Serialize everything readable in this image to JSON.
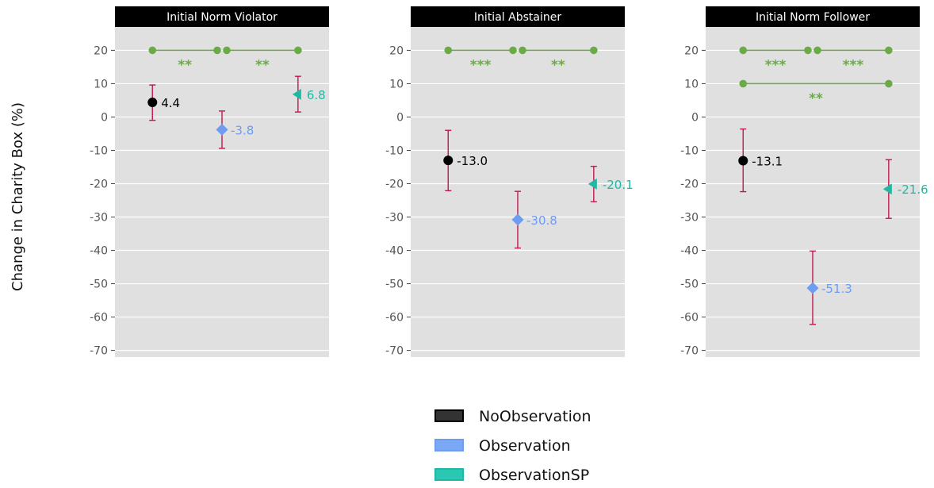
{
  "chart_data": {
    "type": "scatter",
    "ylabel": "Change in Charity Box (%)",
    "xlabel": "",
    "ylim": [
      -72,
      27
    ],
    "yticks": [
      20,
      10,
      0,
      -10,
      -20,
      -30,
      -40,
      -50,
      -60,
      -70
    ],
    "grid": true,
    "legend_position": "bottom",
    "colors": {
      "NoObservation": "#000000",
      "Observation": "#6d9cf0",
      "ObservationSP": "#1fb8a4",
      "errorbar": "#c0184a",
      "significance": "#6aab45"
    },
    "series": [
      {
        "name": "NoObservation",
        "marker": "circle",
        "legend_fill": "#333333",
        "legend_stroke": "#000000"
      },
      {
        "name": "Observation",
        "marker": "diamond",
        "legend_fill": "#7aa8f5",
        "legend_stroke": "#6d9cf0"
      },
      {
        "name": "ObservationSP",
        "marker": "triangle-left",
        "legend_fill": "#2ac7b3",
        "legend_stroke": "#1fb8a4"
      }
    ],
    "panels": [
      {
        "title": "Initial Norm Violator",
        "points": [
          {
            "series": "NoObservation",
            "value": 4.4,
            "label": "4.4",
            "err_low": -1.0,
            "err_high": 9.6
          },
          {
            "series": "Observation",
            "value": -3.8,
            "label": "-3.8",
            "err_low": -9.4,
            "err_high": 1.8
          },
          {
            "series": "ObservationSP",
            "value": 6.8,
            "label": "6.8",
            "err_low": 1.5,
            "err_high": 12.2
          }
        ],
        "comparisons": [
          {
            "from": 0,
            "to": 1,
            "y": 20,
            "stars": "**"
          },
          {
            "from": 1,
            "to": 2,
            "y": 20,
            "stars": "**"
          }
        ]
      },
      {
        "title": "Initial Abstainer",
        "points": [
          {
            "series": "NoObservation",
            "value": -13.0,
            "label": "-13.0",
            "err_low": -22.1,
            "err_high": -4.0
          },
          {
            "series": "Observation",
            "value": -30.8,
            "label": "-30.8",
            "err_low": -39.3,
            "err_high": -22.3
          },
          {
            "series": "ObservationSP",
            "value": -20.1,
            "label": "-20.1",
            "err_low": -25.4,
            "err_high": -14.8
          }
        ],
        "comparisons": [
          {
            "from": 0,
            "to": 1,
            "y": 20,
            "stars": "***"
          },
          {
            "from": 1,
            "to": 2,
            "y": 20,
            "stars": "**"
          }
        ]
      },
      {
        "title": "Initial Norm Follower",
        "points": [
          {
            "series": "NoObservation",
            "value": -13.1,
            "label": "-13.1",
            "err_low": -22.4,
            "err_high": -3.6
          },
          {
            "series": "Observation",
            "value": -51.3,
            "label": "-51.3",
            "err_low": -62.2,
            "err_high": -40.2
          },
          {
            "series": "ObservationSP",
            "value": -21.6,
            "label": "-21.6",
            "err_low": -30.4,
            "err_high": -12.8
          }
        ],
        "comparisons": [
          {
            "from": 0,
            "to": 1,
            "y": 20,
            "stars": "***"
          },
          {
            "from": 1,
            "to": 2,
            "y": 20,
            "stars": "***"
          },
          {
            "from": 0,
            "to": 2,
            "y": 10,
            "stars": "**"
          }
        ]
      }
    ]
  }
}
